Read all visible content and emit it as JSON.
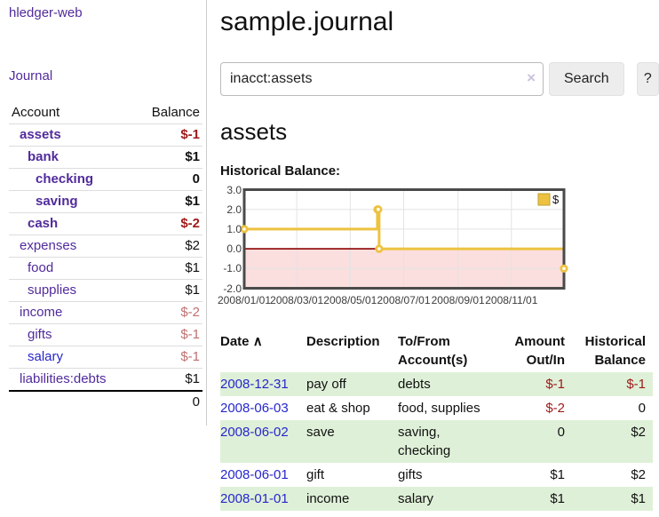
{
  "brand": "hledger-web",
  "sidebar": {
    "journal_label": "Journal",
    "accounts": {
      "headers": {
        "account": "Account",
        "balance": "Balance"
      },
      "rows": [
        {
          "name": "assets",
          "balance": "$-1",
          "level": 1,
          "in_tree": true,
          "visited": true
        },
        {
          "name": "bank",
          "balance": "$1",
          "level": 2,
          "in_tree": true,
          "visited": true
        },
        {
          "name": "checking",
          "balance": "0",
          "level": 3,
          "in_tree": true,
          "visited": true
        },
        {
          "name": "saving",
          "balance": "$1",
          "level": 3,
          "in_tree": true,
          "visited": true
        },
        {
          "name": "cash",
          "balance": "$-2",
          "level": 2,
          "in_tree": true,
          "visited": true
        },
        {
          "name": "expenses",
          "balance": "$2",
          "level": 1,
          "in_tree": false,
          "visited": true
        },
        {
          "name": "food",
          "balance": "$1",
          "level": 2,
          "in_tree": false,
          "visited": true
        },
        {
          "name": "supplies",
          "balance": "$1",
          "level": 2,
          "in_tree": false,
          "visited": true
        },
        {
          "name": "income",
          "balance": "$-2",
          "level": 1,
          "in_tree": false,
          "visited": true
        },
        {
          "name": "gifts",
          "balance": "$-1",
          "level": 2,
          "in_tree": false,
          "visited": true
        },
        {
          "name": "salary",
          "balance": "$-1",
          "level": 2,
          "in_tree": false,
          "visited": false
        },
        {
          "name": "liabilities:debts",
          "balance": "$1",
          "level": 1,
          "in_tree": false,
          "visited": true
        }
      ],
      "total": "0"
    }
  },
  "header": {
    "title": "sample.journal"
  },
  "search": {
    "value": "inacct:assets",
    "clear_icon": "×",
    "search_label": "Search",
    "help_label": "?"
  },
  "account_page": {
    "heading": "assets",
    "chart_label": "Historical Balance:"
  },
  "chart_data": {
    "type": "line",
    "style": "steps",
    "title": "Historical Balance:",
    "series": [
      {
        "name": "$",
        "color": "#edc240",
        "points": [
          [
            "2008-01-01",
            1
          ],
          [
            "2008-06-01",
            2
          ],
          [
            "2008-06-02",
            2
          ],
          [
            "2008-06-03",
            0
          ],
          [
            "2008-12-31",
            -1
          ]
        ]
      }
    ],
    "x_range": [
      "2008-01-01",
      "2008-12-31"
    ],
    "x_ticks": [
      {
        "date": "2008-01-01",
        "label": "2008/01/01"
      },
      {
        "date": "2008-03-01",
        "label": "2008/03/01"
      },
      {
        "date": "2008-05-01",
        "label": "2008/05/01"
      },
      {
        "date": "2008-07-01",
        "label": "2008/07/01"
      },
      {
        "date": "2008-09-01",
        "label": "2008/09/01"
      },
      {
        "date": "2008-11-01",
        "label": "2008/11/01"
      }
    ],
    "ylim": [
      -2,
      3
    ],
    "y_ticks": [
      {
        "value": 3,
        "label": "3.0"
      },
      {
        "value": 2,
        "label": "2.0"
      },
      {
        "value": 1,
        "label": "1.0"
      },
      {
        "value": 0,
        "label": "0.0"
      },
      {
        "value": -1,
        "label": "-1.0"
      },
      {
        "value": -2,
        "label": "-2.0"
      }
    ],
    "grid": true,
    "legend": {
      "label": "$",
      "position": "top-right"
    },
    "negative_region": true
  },
  "transactions": {
    "headers": {
      "date": "Date",
      "sort_icon": "∧",
      "description": "Description",
      "accounts": "To/From Account(s)",
      "amount": "Amount Out/In",
      "balance": "Historical Balance"
    },
    "rows": [
      {
        "date": "2008-12-31",
        "description": "pay off",
        "accounts": "debts",
        "amount": "$-1",
        "balance": "$-1"
      },
      {
        "date": "2008-06-03",
        "description": "eat & shop",
        "accounts": "food, supplies",
        "amount": "$-2",
        "balance": "0"
      },
      {
        "date": "2008-06-02",
        "description": "save",
        "accounts": "saving, checking",
        "amount": "0",
        "balance": "$2"
      },
      {
        "date": "2008-06-01",
        "description": "gift",
        "accounts": "gifts",
        "amount": "$1",
        "balance": "$2"
      },
      {
        "date": "2008-01-01",
        "description": "income",
        "accounts": "salary",
        "amount": "$1",
        "balance": "$1"
      }
    ]
  },
  "colors": {
    "link_purple": "#512b9b",
    "link_blue": "#2727cc",
    "negative_strong": "#9d1a1a",
    "negative_soft": "#c07070",
    "row_green": "#dff0d8",
    "chart_line": "#edc240",
    "chart_line_border": "#bfa030",
    "negative_region_fill": "#fbdede",
    "zero_line": "#8b0000",
    "chart_border": "#4a4a4a",
    "gridline": "#e3e3e3",
    "axis_text": "#3c3c3c"
  }
}
